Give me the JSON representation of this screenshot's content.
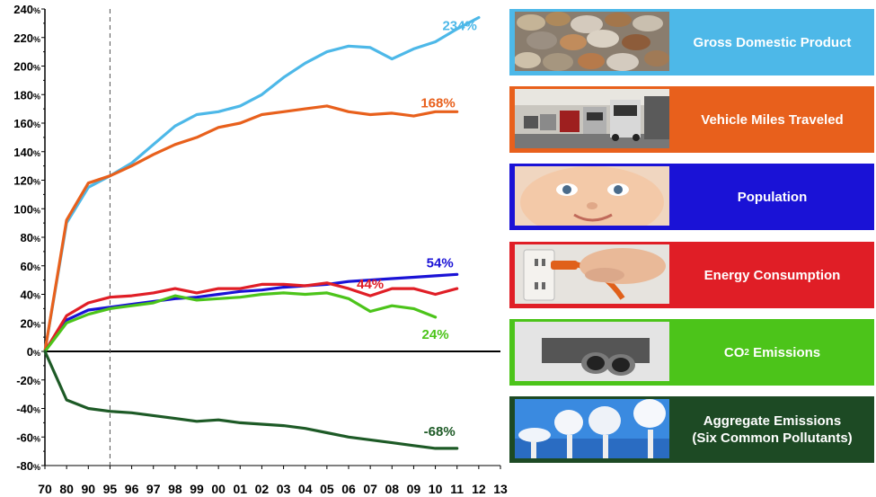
{
  "chart_data": {
    "type": "line",
    "categories": [
      "70",
      "80",
      "90",
      "95",
      "96",
      "97",
      "98",
      "99",
      "00",
      "01",
      "02",
      "03",
      "04",
      "05",
      "06",
      "07",
      "08",
      "09",
      "10",
      "11",
      "12",
      "13"
    ],
    "y_tick_labels": [
      "240%",
      "220%",
      "200%",
      "180%",
      "160%",
      "140%",
      "120%",
      "100%",
      "80%",
      "60%",
      "40%",
      "20%",
      "0%",
      "-20%",
      "-40%",
      "-60%",
      "-80%"
    ],
    "ylim": [
      -80,
      240
    ],
    "y_unit": "%",
    "reference_line_at": "95",
    "series": [
      {
        "name": "Gross Domestic Product",
        "color": "#4DB8E8",
        "end_label": "234%",
        "values": [
          0,
          90,
          115,
          123,
          132,
          145,
          158,
          166,
          168,
          172,
          180,
          192,
          202,
          210,
          214,
          213,
          205,
          212,
          217,
          226,
          234,
          null
        ]
      },
      {
        "name": "Vehicle Miles Traveled",
        "color": "#E8601C",
        "end_label": "168%",
        "values": [
          0,
          92,
          118,
          123,
          130,
          138,
          145,
          150,
          157,
          160,
          166,
          168,
          170,
          172,
          168,
          166,
          167,
          165,
          168,
          168,
          null,
          null
        ]
      },
      {
        "name": "Population",
        "color": "#1A12D6",
        "end_label": "54%",
        "values": [
          0,
          22,
          29,
          31,
          33,
          35,
          37,
          38,
          40,
          42,
          43,
          45,
          46,
          47,
          49,
          50,
          51,
          52,
          53,
          54,
          null,
          null
        ]
      },
      {
        "name": "Energy Consumption",
        "color": "#E01E26",
        "end_label": "44%",
        "values": [
          0,
          25,
          34,
          38,
          39,
          41,
          44,
          41,
          44,
          44,
          47,
          47,
          46,
          48,
          44,
          39,
          44,
          44,
          40,
          44,
          null,
          null
        ]
      },
      {
        "name": "CO2 Emissions",
        "color": "#4CC41A",
        "end_label": "24%",
        "values": [
          0,
          20,
          26,
          30,
          32,
          34,
          39,
          36,
          37,
          38,
          40,
          41,
          40,
          41,
          37,
          28,
          32,
          30,
          24,
          null,
          null,
          null
        ]
      },
      {
        "name": "Aggregate Emissions (Six Common Pollutants)",
        "color": "#1D5A26",
        "end_label": "-68%",
        "values": [
          0,
          -34,
          -40,
          -42,
          -43,
          -45,
          -47,
          -49,
          -48,
          -50,
          -51,
          -52,
          -54,
          -57,
          -60,
          -62,
          -64,
          -66,
          -68,
          -68,
          null,
          null
        ]
      }
    ]
  },
  "legend": [
    {
      "label": "Gross Domestic Product",
      "color": "#4DB8E8",
      "photo": "coins"
    },
    {
      "label": "Vehicle Miles Traveled",
      "color": "#E8601C",
      "photo": "traffic"
    },
    {
      "label": "Population",
      "color": "#1A12D6",
      "photo": "baby"
    },
    {
      "label": "Energy Consumption",
      "color": "#E01E26",
      "photo": "plug"
    },
    {
      "label_main": "CO",
      "label_sub": "2",
      "label_tail": " Emissions",
      "color": "#4CC41A",
      "photo": "exhaust"
    },
    {
      "label": "Aggregate Emissions (Six Common Pollutants)",
      "label_line1": "Aggregate Emissions",
      "label_line2": "(Six Common Pollutants)",
      "color": "#1D4A24",
      "photo": "smokestacks"
    }
  ]
}
